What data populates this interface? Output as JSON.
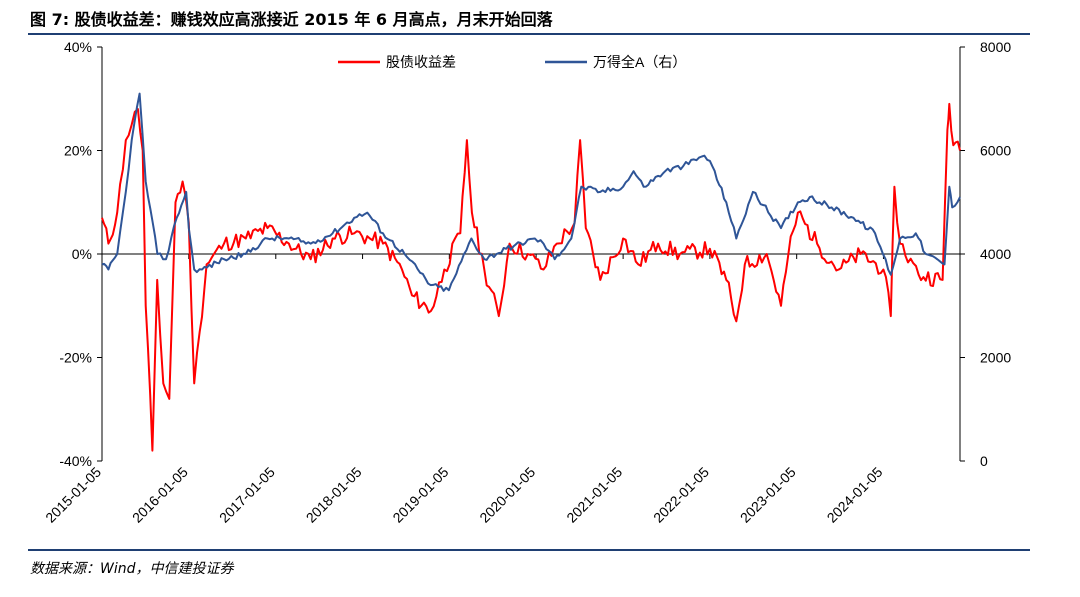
{
  "header": {
    "title": "图 7: 股债收益差：赚钱效应高涨接近 2015 年 6 月高点，月末开始回落"
  },
  "footer": {
    "source": "数据来源：Wind，中信建投证券"
  },
  "chart_data": {
    "type": "line",
    "x_start": "2015-01-05",
    "x_end": "2024-11-22",
    "x_ticks": [
      "2015-01-05",
      "2016-01-05",
      "2017-01-05",
      "2018-01-05",
      "2019-01-05",
      "2020-01-05",
      "2021-01-05",
      "2022-01-05",
      "2023-01-05",
      "2024-01-05"
    ],
    "y_left": {
      "ticks": [
        "40%",
        "20%",
        "0%",
        "-20%",
        "-40%"
      ],
      "values": [
        40,
        20,
        0,
        -20,
        -40
      ],
      "range": [
        -40,
        40
      ]
    },
    "y_right": {
      "ticks": [
        "8000",
        "6000",
        "4000",
        "2000",
        "0"
      ],
      "values": [
        8000,
        6000,
        4000,
        2000,
        0
      ],
      "range": [
        0,
        8000
      ]
    },
    "legend": {
      "placement": "top-center"
    },
    "series": [
      {
        "name": "股债收益差",
        "axis": "left",
        "color": "#ff0000",
        "points": [
          [
            "2015-01-05",
            7
          ],
          [
            "2015-02-01",
            2
          ],
          [
            "2015-03-10",
            8
          ],
          [
            "2015-04-15",
            22
          ],
          [
            "2015-05-10",
            25
          ],
          [
            "2015-06-05",
            28
          ],
          [
            "2015-06-25",
            20
          ],
          [
            "2015-07-08",
            -10
          ],
          [
            "2015-08-05",
            -38
          ],
          [
            "2015-08-25",
            -5
          ],
          [
            "2015-09-20",
            -25
          ],
          [
            "2015-10-15",
            -28
          ],
          [
            "2015-11-10",
            10
          ],
          [
            "2015-12-10",
            14
          ],
          [
            "2016-01-05",
            6
          ],
          [
            "2016-01-28",
            -25
          ],
          [
            "2016-02-20",
            -15
          ],
          [
            "2016-03-20",
            -2
          ],
          [
            "2016-06-01",
            2
          ],
          [
            "2016-09-01",
            3
          ],
          [
            "2016-12-01",
            5
          ],
          [
            "2017-03-01",
            2
          ],
          [
            "2017-06-01",
            -1
          ],
          [
            "2017-09-01",
            3
          ],
          [
            "2017-12-01",
            4
          ],
          [
            "2018-02-05",
            3
          ],
          [
            "2018-04-01",
            2
          ],
          [
            "2018-06-20",
            -3
          ],
          [
            "2018-08-01",
            -8
          ],
          [
            "2018-10-20",
            -11
          ],
          [
            "2018-12-15",
            -3
          ],
          [
            "2019-02-20",
            4
          ],
          [
            "2019-03-20",
            22
          ],
          [
            "2019-04-10",
            8
          ],
          [
            "2019-06-01",
            -3
          ],
          [
            "2019-08-01",
            -12
          ],
          [
            "2019-09-15",
            2
          ],
          [
            "2019-12-01",
            0
          ],
          [
            "2020-02-05",
            -3
          ],
          [
            "2020-04-01",
            2
          ],
          [
            "2020-06-15",
            6
          ],
          [
            "2020-07-08",
            22
          ],
          [
            "2020-08-01",
            5
          ],
          [
            "2020-10-01",
            -5
          ],
          [
            "2021-01-05",
            3
          ],
          [
            "2021-03-10",
            -2
          ],
          [
            "2021-06-01",
            2
          ],
          [
            "2021-09-01",
            0
          ],
          [
            "2022-01-05",
            1
          ],
          [
            "2022-03-15",
            -5
          ],
          [
            "2022-04-26",
            -13
          ],
          [
            "2022-06-01",
            -2
          ],
          [
            "2022-09-01",
            0
          ],
          [
            "2022-10-31",
            -10
          ],
          [
            "2022-12-01",
            0
          ],
          [
            "2023-01-10",
            8
          ],
          [
            "2023-04-01",
            2
          ],
          [
            "2023-07-01",
            -3
          ],
          [
            "2023-10-01",
            0
          ],
          [
            "2024-01-05",
            -3
          ],
          [
            "2024-02-05",
            -12
          ],
          [
            "2024-02-20",
            13
          ],
          [
            "2024-03-15",
            2
          ],
          [
            "2024-06-01",
            -4
          ],
          [
            "2024-09-10",
            -5
          ],
          [
            "2024-09-30",
            24
          ],
          [
            "2024-10-08",
            29
          ],
          [
            "2024-10-25",
            21
          ],
          [
            "2024-11-22",
            20
          ]
        ]
      },
      {
        "name": "万得全A（右）",
        "axis": "right",
        "color": "#2f5597",
        "points": [
          [
            "2015-01-05",
            3800
          ],
          [
            "2015-02-01",
            3700
          ],
          [
            "2015-03-10",
            4000
          ],
          [
            "2015-04-15",
            5200
          ],
          [
            "2015-05-10",
            6200
          ],
          [
            "2015-06-12",
            7100
          ],
          [
            "2015-07-08",
            5400
          ],
          [
            "2015-08-26",
            4000
          ],
          [
            "2015-10-01",
            3900
          ],
          [
            "2015-11-15",
            4700
          ],
          [
            "2015-12-25",
            5200
          ],
          [
            "2016-01-05",
            4500
          ],
          [
            "2016-01-28",
            3700
          ],
          [
            "2016-03-01",
            3700
          ],
          [
            "2016-06-01",
            3900
          ],
          [
            "2016-09-01",
            4000
          ],
          [
            "2016-12-01",
            4300
          ],
          [
            "2017-03-01",
            4300
          ],
          [
            "2017-06-01",
            4200
          ],
          [
            "2017-09-01",
            4400
          ],
          [
            "2017-12-01",
            4700
          ],
          [
            "2018-01-25",
            4800
          ],
          [
            "2018-04-01",
            4400
          ],
          [
            "2018-07-01",
            4000
          ],
          [
            "2018-10-18",
            3400
          ],
          [
            "2019-01-03",
            3300
          ],
          [
            "2019-04-08",
            4300
          ],
          [
            "2019-06-01",
            3900
          ],
          [
            "2019-09-01",
            4100
          ],
          [
            "2019-12-31",
            4300
          ],
          [
            "2020-02-05",
            4200
          ],
          [
            "2020-03-23",
            3900
          ],
          [
            "2020-06-01",
            4300
          ],
          [
            "2020-07-13",
            5300
          ],
          [
            "2020-10-01",
            5200
          ],
          [
            "2021-01-05",
            5300
          ],
          [
            "2021-02-18",
            5600
          ],
          [
            "2021-04-01",
            5300
          ],
          [
            "2021-07-01",
            5600
          ],
          [
            "2021-09-15",
            5700
          ],
          [
            "2021-12-13",
            5900
          ],
          [
            "2022-01-05",
            5800
          ],
          [
            "2022-03-15",
            5000
          ],
          [
            "2022-04-26",
            4300
          ],
          [
            "2022-07-05",
            5200
          ],
          [
            "2022-10-31",
            4500
          ],
          [
            "2023-01-10",
            5000
          ],
          [
            "2023-03-01",
            5100
          ],
          [
            "2023-06-01",
            4900
          ],
          [
            "2023-09-01",
            4700
          ],
          [
            "2023-12-01",
            4400
          ],
          [
            "2024-02-05",
            3600
          ],
          [
            "2024-03-15",
            4300
          ],
          [
            "2024-05-20",
            4400
          ],
          [
            "2024-07-01",
            4000
          ],
          [
            "2024-09-18",
            3800
          ],
          [
            "2024-10-08",
            5300
          ],
          [
            "2024-10-20",
            4900
          ],
          [
            "2024-11-22",
            5100
          ]
        ]
      }
    ]
  }
}
